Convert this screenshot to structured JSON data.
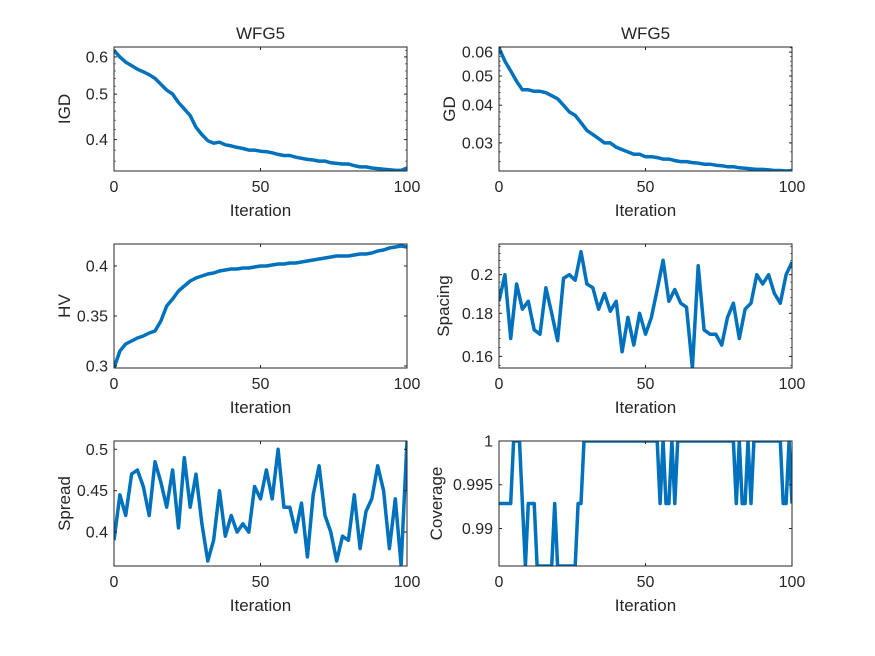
{
  "chart_data": [
    {
      "type": "line",
      "title": "WFG5",
      "xlabel": "Iteration",
      "ylabel": "IGD",
      "yscale": "log",
      "xlim": [
        0,
        100
      ],
      "ylim": [
        0.343,
        0.63
      ],
      "xticks": [
        0,
        50,
        100
      ],
      "xticklabels": [
        "0",
        "50",
        "100"
      ],
      "yticks": [
        0.4,
        0.5,
        0.6
      ],
      "yticklabels": [
        "0.4",
        "0.5",
        "0.6"
      ],
      "color": "#0072BD",
      "xstep": 2,
      "y": [
        0.62,
        0.6,
        0.585,
        0.575,
        0.565,
        0.558,
        0.55,
        0.54,
        0.525,
        0.51,
        0.5,
        0.48,
        0.465,
        0.45,
        0.425,
        0.41,
        0.398,
        0.393,
        0.395,
        0.39,
        0.388,
        0.385,
        0.383,
        0.38,
        0.38,
        0.378,
        0.377,
        0.375,
        0.372,
        0.37,
        0.37,
        0.367,
        0.365,
        0.363,
        0.362,
        0.36,
        0.36,
        0.357,
        0.356,
        0.355,
        0.355,
        0.352,
        0.35,
        0.35,
        0.348,
        0.347,
        0.346,
        0.345,
        0.344,
        0.344,
        0.348
      ]
    },
    {
      "type": "line",
      "title": "WFG5",
      "xlabel": "Iteration",
      "ylabel": "GD",
      "yscale": "log",
      "xlim": [
        0,
        100
      ],
      "ylim": [
        0.0242,
        0.0624
      ],
      "xticks": [
        0,
        50,
        100
      ],
      "xticklabels": [
        "0",
        "50",
        "100"
      ],
      "yticks": [
        0.03,
        0.04,
        0.05,
        0.06
      ],
      "yticklabels": [
        "0.03",
        "0.04",
        "0.05",
        "0.06"
      ],
      "color": "#0072BD",
      "xstep": 2,
      "y": [
        0.062,
        0.056,
        0.052,
        0.048,
        0.045,
        0.045,
        0.0445,
        0.0445,
        0.044,
        0.043,
        0.042,
        0.04,
        0.038,
        0.037,
        0.035,
        0.033,
        0.032,
        0.031,
        0.03,
        0.03,
        0.029,
        0.0285,
        0.028,
        0.0275,
        0.0275,
        0.027,
        0.027,
        0.0268,
        0.0265,
        0.0265,
        0.0262,
        0.026,
        0.026,
        0.0258,
        0.0257,
        0.0255,
        0.0255,
        0.0253,
        0.0252,
        0.025,
        0.025,
        0.0248,
        0.0247,
        0.0246,
        0.0245,
        0.0245,
        0.0244,
        0.0243,
        0.0243,
        0.0242,
        0.0243
      ]
    },
    {
      "type": "line",
      "title": "",
      "xlabel": "Iteration",
      "ylabel": "HV",
      "yscale": "linear",
      "xlim": [
        0,
        100
      ],
      "ylim": [
        0.298,
        0.422
      ],
      "xticks": [
        0,
        50,
        100
      ],
      "xticklabels": [
        "0",
        "50",
        "100"
      ],
      "yticks": [
        0.3,
        0.35,
        0.4
      ],
      "yticklabels": [
        "0.3",
        "0.35",
        "0.4"
      ],
      "color": "#0072BD",
      "xstep": 2,
      "y": [
        0.298,
        0.315,
        0.322,
        0.325,
        0.328,
        0.33,
        0.333,
        0.335,
        0.345,
        0.36,
        0.367,
        0.375,
        0.38,
        0.385,
        0.388,
        0.39,
        0.392,
        0.393,
        0.395,
        0.396,
        0.397,
        0.397,
        0.398,
        0.398,
        0.399,
        0.4,
        0.4,
        0.401,
        0.402,
        0.402,
        0.403,
        0.403,
        0.404,
        0.405,
        0.406,
        0.407,
        0.408,
        0.409,
        0.41,
        0.41,
        0.41,
        0.411,
        0.412,
        0.412,
        0.413,
        0.415,
        0.416,
        0.418,
        0.419,
        0.42,
        0.419
      ]
    },
    {
      "type": "line",
      "title": "",
      "xlabel": "Iteration",
      "ylabel": "Spacing",
      "yscale": "log",
      "xlim": [
        0,
        100
      ],
      "ylim": [
        0.155,
        0.2175
      ],
      "xticks": [
        0,
        50,
        100
      ],
      "xticklabels": [
        "0",
        "50",
        "100"
      ],
      "yticks": [
        0.16,
        0.18,
        0.2
      ],
      "yticklabels": [
        "0.16",
        "0.18",
        "0.2"
      ],
      "color": "#0072BD",
      "xstep": 2,
      "y": [
        0.186,
        0.2,
        0.168,
        0.195,
        0.182,
        0.186,
        0.172,
        0.17,
        0.193,
        0.18,
        0.167,
        0.198,
        0.2,
        0.197,
        0.213,
        0.195,
        0.193,
        0.182,
        0.19,
        0.181,
        0.186,
        0.162,
        0.178,
        0.165,
        0.18,
        0.17,
        0.178,
        0.192,
        0.208,
        0.186,
        0.192,
        0.185,
        0.183,
        0.155,
        0.205,
        0.172,
        0.17,
        0.17,
        0.165,
        0.178,
        0.185,
        0.168,
        0.182,
        0.185,
        0.2,
        0.195,
        0.2,
        0.19,
        0.185,
        0.2,
        0.207
      ]
    },
    {
      "type": "line",
      "title": "",
      "xlabel": "Iteration",
      "ylabel": "Spread",
      "yscale": "linear",
      "xlim": [
        0,
        100
      ],
      "ylim": [
        0.359,
        0.51
      ],
      "xticks": [
        0,
        50,
        100
      ],
      "xticklabels": [
        "0",
        "50",
        "100"
      ],
      "yticks": [
        0.4,
        0.45,
        0.5
      ],
      "yticklabels": [
        "0.4",
        "0.45",
        "0.5"
      ],
      "color": "#0072BD",
      "xstep": 2,
      "y": [
        0.39,
        0.445,
        0.42,
        0.47,
        0.475,
        0.455,
        0.42,
        0.485,
        0.46,
        0.43,
        0.475,
        0.405,
        0.49,
        0.43,
        0.47,
        0.41,
        0.365,
        0.39,
        0.45,
        0.395,
        0.42,
        0.4,
        0.41,
        0.4,
        0.455,
        0.44,
        0.475,
        0.44,
        0.5,
        0.43,
        0.43,
        0.4,
        0.435,
        0.37,
        0.445,
        0.48,
        0.42,
        0.4,
        0.365,
        0.395,
        0.39,
        0.445,
        0.38,
        0.425,
        0.44,
        0.48,
        0.45,
        0.38,
        0.44,
        0.36,
        0.51
      ]
    },
    {
      "type": "line",
      "title": "",
      "xlabel": "Iteration",
      "ylabel": "Coverage",
      "yscale": "linear",
      "xlim": [
        0,
        100
      ],
      "ylim": [
        0.98571,
        1
      ],
      "xticks": [
        0,
        50,
        100
      ],
      "xticklabels": [
        "0",
        "50",
        "100"
      ],
      "yticks": [
        0.99,
        0.995,
        1
      ],
      "yticklabels": [
        "0.99",
        "0.995",
        "1"
      ],
      "color": "#0072BD",
      "xstep": 1,
      "y": [
        0.99286,
        0.99286,
        0.99286,
        0.99286,
        0.99286,
        1,
        1,
        1,
        0.99286,
        0.98571,
        0.99286,
        0.99286,
        0.99286,
        0.98571,
        0.98571,
        0.98571,
        0.98571,
        0.98571,
        0.98571,
        0.99286,
        0.98571,
        0.98571,
        0.98571,
        0.98571,
        0.98571,
        0.98571,
        0.98571,
        0.99286,
        0.99286,
        1,
        1,
        1,
        1,
        1,
        1,
        1,
        1,
        1,
        1,
        1,
        1,
        1,
        1,
        1,
        1,
        1,
        1,
        1,
        1,
        1,
        1,
        1,
        1,
        1,
        1,
        0.99286,
        1,
        0.99286,
        0.99286,
        1,
        0.99286,
        1,
        1,
        1,
        1,
        1,
        1,
        1,
        1,
        1,
        1,
        1,
        1,
        1,
        1,
        1,
        1,
        1,
        1,
        1,
        1,
        0.99286,
        1,
        0.99286,
        0.99286,
        1,
        0.99286,
        1,
        1,
        1,
        1,
        1,
        1,
        1,
        1,
        1,
        1,
        0.99286,
        0.99286,
        1,
        0.99286
      ]
    }
  ]
}
